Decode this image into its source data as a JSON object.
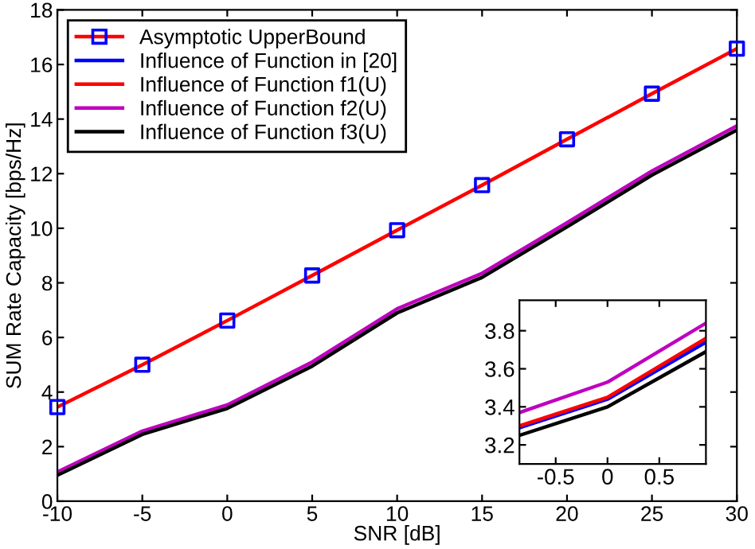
{
  "chart_data": [
    {
      "type": "line",
      "xlabel": "SNR [dB]",
      "ylabel": "SUM Rate Capacity [bps/Hz]",
      "x": [
        -10,
        -5,
        0,
        5,
        10,
        15,
        20,
        25,
        30
      ],
      "xlim": [
        -10,
        30
      ],
      "ylim": [
        0,
        18
      ],
      "xticks": [
        -10,
        -5,
        0,
        5,
        10,
        15,
        20,
        25,
        30
      ],
      "yticks": [
        0,
        2,
        4,
        6,
        8,
        10,
        12,
        14,
        16,
        18
      ],
      "grid": false,
      "legend": "top left",
      "marker": "none",
      "line_style": "solid",
      "series": [
        {
          "name": "Asymptotic UpperBound",
          "color": "#ff0000",
          "marker": "square",
          "colors": [
            "#0000ff",
            "#0000ff",
            "#0000ff",
            "#0000ff",
            "#0000ff",
            "#0000ff",
            "#0000ff",
            "#0000ff",
            "#0000ff"
          ],
          "values": [
            3.45,
            5.0,
            6.62,
            8.27,
            9.93,
            11.58,
            13.26,
            14.93,
            16.58
          ]
        },
        {
          "name": "Influence of Function in [20]",
          "color": "#0000ff",
          "values": [
            null,
            null,
            null,
            null,
            null,
            null,
            null,
            null,
            null
          ]
        },
        {
          "name": "Influence of Function f1(U)",
          "color": "#ff0000",
          "values": [
            null,
            null,
            null,
            null,
            null,
            null,
            null,
            null,
            null
          ]
        },
        {
          "name": "Influence of Function f2(U)",
          "color": "#bf00bf",
          "values": [
            1.07,
            2.57,
            3.53,
            5.1,
            7.05,
            8.35,
            10.2,
            12.1,
            13.75
          ]
        },
        {
          "name": "Influence of Function f3(U)",
          "color": "#000000",
          "values": [
            0.95,
            2.45,
            3.4,
            4.95,
            6.9,
            8.2,
            10.05,
            11.95,
            13.6
          ]
        }
      ]
    },
    {
      "type": "line",
      "x": [
        -0.85,
        0,
        0.95
      ],
      "xlim": [
        -0.85,
        0.95
      ],
      "ylim": [
        3.1,
        3.96
      ],
      "xticks": [
        -0.5,
        0,
        0.5
      ],
      "yticks": [
        3.2,
        3.4,
        3.6,
        3.8
      ],
      "grid": false,
      "line_style": "solid",
      "series": [
        {
          "color": "#0000ff",
          "values": [
            3.29,
            3.44,
            3.74
          ]
        },
        {
          "color": "#ff0000",
          "values": [
            3.3,
            3.45,
            3.76
          ]
        },
        {
          "color": "#bf00bf",
          "values": [
            3.37,
            3.53,
            3.84
          ]
        },
        {
          "color": "#000000",
          "values": [
            3.25,
            3.4,
            3.69
          ]
        }
      ]
    }
  ]
}
